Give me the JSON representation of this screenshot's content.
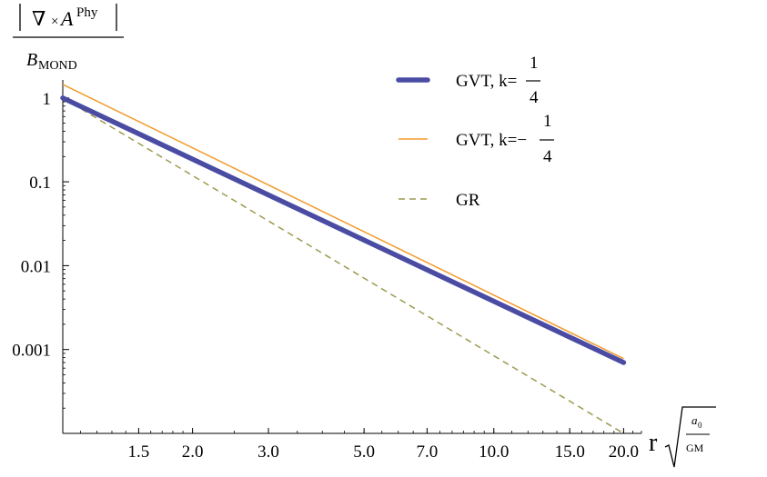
{
  "chart_data": {
    "type": "line",
    "title": "",
    "xscale": "log",
    "yscale": "log",
    "xlim": [
      1.0,
      22.0
    ],
    "ylim": [
      0.0001,
      2.0
    ],
    "x_ticks": [
      {
        "value": 1.5,
        "label": "1.5"
      },
      {
        "value": 2.0,
        "label": "2.0"
      },
      {
        "value": 3.0,
        "label": "3.0"
      },
      {
        "value": 5.0,
        "label": "5.0"
      },
      {
        "value": 7.0,
        "label": "7.0"
      },
      {
        "value": 10.0,
        "label": "10.0"
      },
      {
        "value": 15.0,
        "label": "15.0"
      },
      {
        "value": 20.0,
        "label": "20.0"
      }
    ],
    "y_ticks": [
      {
        "value": 1,
        "label": "1"
      },
      {
        "value": 0.1,
        "label": "0.1"
      },
      {
        "value": 0.01,
        "label": "0.01"
      },
      {
        "value": 0.001,
        "label": "0.001"
      }
    ],
    "ylabel": {
      "nabla": "∇",
      "times": "×",
      "A": "A",
      "sup": "Phy",
      "B": "B",
      "sub": "MOND"
    },
    "xlabel": {
      "r": "r",
      "a": "a",
      "a_sub": "0",
      "GM": "GM"
    },
    "series": [
      {
        "name": "GVT, k=1/4",
        "legend_text": "GVT, k=",
        "frac_num": "1",
        "frac_den": "4",
        "color": "#4a4ca3",
        "style": "thick",
        "x": [
          1.0,
          20.0
        ],
        "y": [
          1.0,
          0.0007
        ]
      },
      {
        "name": "GVT, k=-1/4",
        "legend_text": "GVT, k=−",
        "frac_num": "1",
        "frac_den": "4",
        "color": "#f39a2b",
        "style": "thin",
        "x": [
          1.0,
          20.0
        ],
        "y": [
          1.45,
          0.00078
        ]
      },
      {
        "name": "GR",
        "legend_text": "GR",
        "color": "#9c9a50",
        "style": "dashed",
        "x": [
          1.0,
          20.0
        ],
        "y": [
          1.0,
          0.0001
        ]
      }
    ]
  }
}
